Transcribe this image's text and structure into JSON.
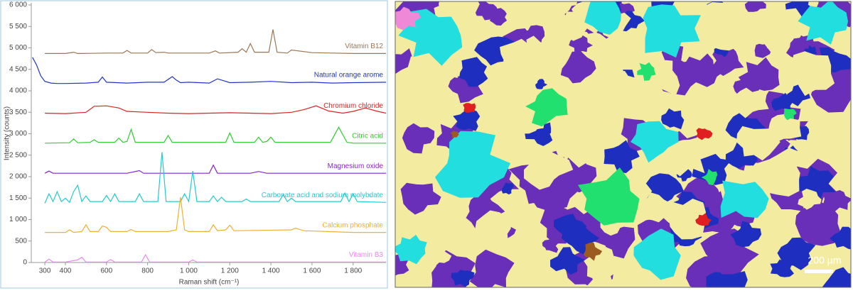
{
  "chart_data": {
    "type": "line",
    "x_label": "Raman shift (cm⁻¹)",
    "y_label": "Intensity (counts)",
    "xlim": [
      234,
      1960
    ],
    "ylim": [
      0,
      6000
    ],
    "xticks": [
      300,
      400,
      600,
      800,
      {
        "value": 1000,
        "label": "1 000"
      },
      {
        "value": 1200,
        "label": "1 200"
      },
      {
        "value": 1400,
        "label": "1 400"
      },
      {
        "value": 1600,
        "label": "1 600"
      },
      {
        "value": 1800,
        "label": "1 800"
      }
    ],
    "yticks": [
      0,
      500,
      {
        "value": 1000,
        "label": "1 000"
      },
      {
        "value": 1500,
        "label": "1 500"
      },
      {
        "value": 2000,
        "label": "2 000"
      },
      {
        "value": 2500,
        "label": "2 500"
      },
      {
        "value": 3000,
        "label": "3 000"
      },
      {
        "value": 3500,
        "label": "3 500"
      },
      {
        "value": 4000,
        "label": "4 000"
      },
      {
        "value": 4500,
        "label": "4 500"
      },
      {
        "value": 5000,
        "label": "5 000"
      },
      {
        "value": 5500,
        "label": "5 500"
      },
      {
        "value": 6000,
        "label": "6 000"
      }
    ],
    "grid": false,
    "series": [
      {
        "name": "Vitamin B12",
        "color": "#9b7653",
        "x": [
          300,
          400,
          440,
          460,
          480,
          600,
          680,
          700,
          720,
          800,
          820,
          840,
          880,
          900,
          1100,
          1130,
          1150,
          1240,
          1260,
          1280,
          1300,
          1320,
          1390,
          1410,
          1430,
          1480,
          1500,
          1600,
          1700,
          1800,
          1960
        ],
        "values": [
          4870,
          4870,
          4900,
          4870,
          4870,
          4880,
          4880,
          4940,
          4880,
          4880,
          4960,
          4890,
          4900,
          4880,
          4880,
          4930,
          4880,
          4900,
          4980,
          4900,
          5100,
          4900,
          4900,
          5430,
          4900,
          4880,
          4950,
          4890,
          4880,
          4870,
          4870
        ]
      },
      {
        "name": "Natural orange arome",
        "color": "#2233cc",
        "x": [
          240,
          260,
          280,
          300,
          330,
          360,
          400,
          500,
          560,
          580,
          600,
          700,
          800,
          880,
          920,
          940,
          960,
          1000,
          1100,
          1140,
          1200,
          1300,
          1400,
          1500,
          1600,
          1700,
          1800,
          1960
        ],
        "values": [
          4780,
          4600,
          4350,
          4220,
          4180,
          4170,
          4170,
          4180,
          4200,
          4320,
          4200,
          4180,
          4200,
          4200,
          4330,
          4250,
          4190,
          4200,
          4180,
          4280,
          4190,
          4200,
          4220,
          4190,
          4200,
          4180,
          4190,
          4200
        ]
      },
      {
        "name": "Chromium chloride",
        "color": "#dd2222",
        "x": [
          300,
          400,
          500,
          540,
          600,
          660,
          700,
          800,
          900,
          1000,
          1100,
          1200,
          1400,
          1500,
          1560,
          1620,
          1680,
          1750,
          1800,
          1860,
          1920,
          1960
        ],
        "values": [
          3480,
          3470,
          3500,
          3640,
          3650,
          3600,
          3520,
          3500,
          3480,
          3470,
          3480,
          3490,
          3470,
          3500,
          3560,
          3650,
          3530,
          3480,
          3520,
          3600,
          3520,
          3480
        ]
      },
      {
        "name": "Citric acid",
        "color": "#33cc33",
        "x": [
          300,
          420,
          440,
          460,
          520,
          540,
          560,
          640,
          660,
          680,
          700,
          720,
          740,
          880,
          900,
          920,
          1180,
          1200,
          1220,
          1320,
          1340,
          1360,
          1380,
          1400,
          1420,
          1690,
          1730,
          1770,
          1800,
          1960
        ],
        "values": [
          2780,
          2790,
          2880,
          2790,
          2800,
          2860,
          2800,
          2800,
          2900,
          2800,
          2820,
          3100,
          2800,
          2800,
          2960,
          2800,
          2800,
          3020,
          2800,
          2800,
          2920,
          2800,
          2820,
          2920,
          2800,
          2800,
          3150,
          2800,
          2780,
          2780
        ]
      },
      {
        "name": "Magnesium oxide",
        "color": "#8822cc",
        "x": [
          300,
          320,
          340,
          700,
          760,
          780,
          1100,
          1120,
          1140,
          1300,
          1340,
          1380,
          1960
        ],
        "values": [
          2080,
          2130,
          2080,
          2080,
          2140,
          2080,
          2080,
          2270,
          2080,
          2080,
          2120,
          2080,
          2080
        ]
      },
      {
        "name": "Carbonate acid and sodium molybdate",
        "color": "#22cccc",
        "x": [
          300,
          320,
          340,
          360,
          380,
          400,
          420,
          440,
          460,
          480,
          500,
          520,
          580,
          600,
          620,
          640,
          660,
          740,
          760,
          780,
          850,
          870,
          890,
          960,
          980,
          1000,
          1020,
          1040,
          1100,
          1120,
          1140,
          1160,
          1180,
          1260,
          1280,
          1300,
          1440,
          1460,
          1480,
          1500,
          1520,
          1740,
          1760,
          1780,
          1800,
          1820,
          1960
        ],
        "values": [
          1380,
          1600,
          1420,
          1650,
          1420,
          1500,
          1400,
          1650,
          1800,
          1420,
          1550,
          1420,
          1420,
          1560,
          1420,
          1600,
          1420,
          1420,
          1600,
          1420,
          1420,
          2570,
          1420,
          1420,
          1600,
          1420,
          2130,
          1420,
          1420,
          1550,
          1420,
          1520,
          1420,
          1420,
          1480,
          1420,
          1420,
          1580,
          1420,
          1500,
          1420,
          1420,
          1620,
          1420,
          1600,
          1420,
          1400
        ]
      },
      {
        "name": "Calcium phosphate",
        "color": "#f0b030",
        "x": [
          300,
          400,
          420,
          440,
          480,
          500,
          520,
          560,
          580,
          600,
          620,
          700,
          720,
          740,
          900,
          940,
          960,
          980,
          1000,
          1100,
          1120,
          1140,
          1180,
          1200,
          1220,
          1500,
          1520,
          1560,
          1800,
          1960
        ],
        "values": [
          700,
          700,
          760,
          700,
          720,
          880,
          720,
          720,
          850,
          820,
          720,
          720,
          770,
          720,
          720,
          760,
          1520,
          760,
          720,
          720,
          880,
          740,
          760,
          870,
          740,
          760,
          800,
          740,
          700,
          700
        ]
      },
      {
        "name": "Vitamin B3",
        "color": "#ee88ee",
        "x": [
          300,
          320,
          340,
          400,
          460,
          480,
          500,
          600,
          620,
          640,
          770,
          790,
          810,
          1000,
          1020,
          1040,
          1960
        ],
        "values": [
          10,
          80,
          10,
          10,
          60,
          120,
          10,
          10,
          70,
          10,
          10,
          180,
          10,
          10,
          60,
          10,
          10
        ]
      }
    ]
  },
  "map": {
    "scale_bar": "200 µm"
  }
}
